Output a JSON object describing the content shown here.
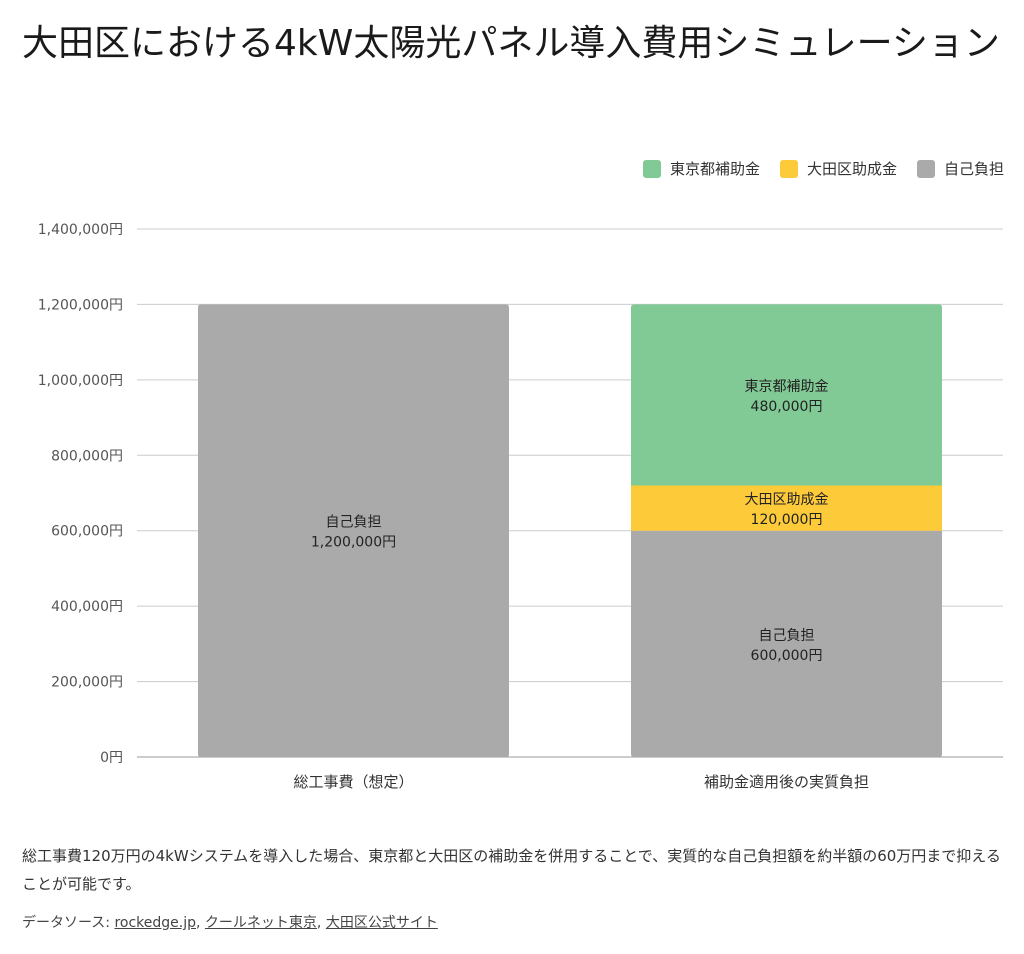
{
  "title": "大田区における4kW太陽光パネル導入費用シミュレーション",
  "colors": {
    "tokyo": "#81c995",
    "ota": "#fdca3a",
    "self": "#aaaaaa"
  },
  "legend": [
    "東京都補助金",
    "大田区助成金",
    "自己負担"
  ],
  "chart_data": {
    "type": "bar",
    "stacked": true,
    "categories": [
      "総工事費（想定）",
      "補助金適用後の実質負担"
    ],
    "series": [
      {
        "name": "自己負担",
        "values": [
          1200000,
          600000
        ],
        "color": "#aaaaaa"
      },
      {
        "name": "大田区助成金",
        "values": [
          0,
          120000
        ],
        "color": "#fdca3a"
      },
      {
        "name": "東京都補助金",
        "values": [
          0,
          480000
        ],
        "color": "#81c995"
      }
    ],
    "ylim": [
      0,
      1400000
    ],
    "yticks": [
      "0円",
      "200,000円",
      "400,000円",
      "600,000円",
      "800,000円",
      "1,000,000円",
      "1,200,000円",
      "1,400,000円"
    ],
    "yticks_values": [
      0,
      200000,
      400000,
      600000,
      800000,
      1000000,
      1200000,
      1400000
    ],
    "data_labels": [
      {
        "category": 0,
        "series": "自己負担",
        "name": "自己負担",
        "value": "1,200,000円"
      },
      {
        "category": 1,
        "series": "自己負担",
        "name": "自己負担",
        "value": "600,000円"
      },
      {
        "category": 1,
        "series": "大田区助成金",
        "name": "大田区助成金",
        "value": "120,000円"
      },
      {
        "category": 1,
        "series": "東京都補助金",
        "name": "東京都補助金",
        "value": "480,000円"
      }
    ],
    "grid": true,
    "legend_position": "top-right"
  },
  "caption": "総工事費120万円の4kWシステムを導入した場合、東京都と大田区の補助金を併用することで、実質的な自己負担額を約半額の60万円まで抑えることが可能です。",
  "sources": {
    "prefix": "データソース: ",
    "links": [
      "rockedge.jp",
      "クールネット東京",
      "大田区公式サイト"
    ]
  }
}
